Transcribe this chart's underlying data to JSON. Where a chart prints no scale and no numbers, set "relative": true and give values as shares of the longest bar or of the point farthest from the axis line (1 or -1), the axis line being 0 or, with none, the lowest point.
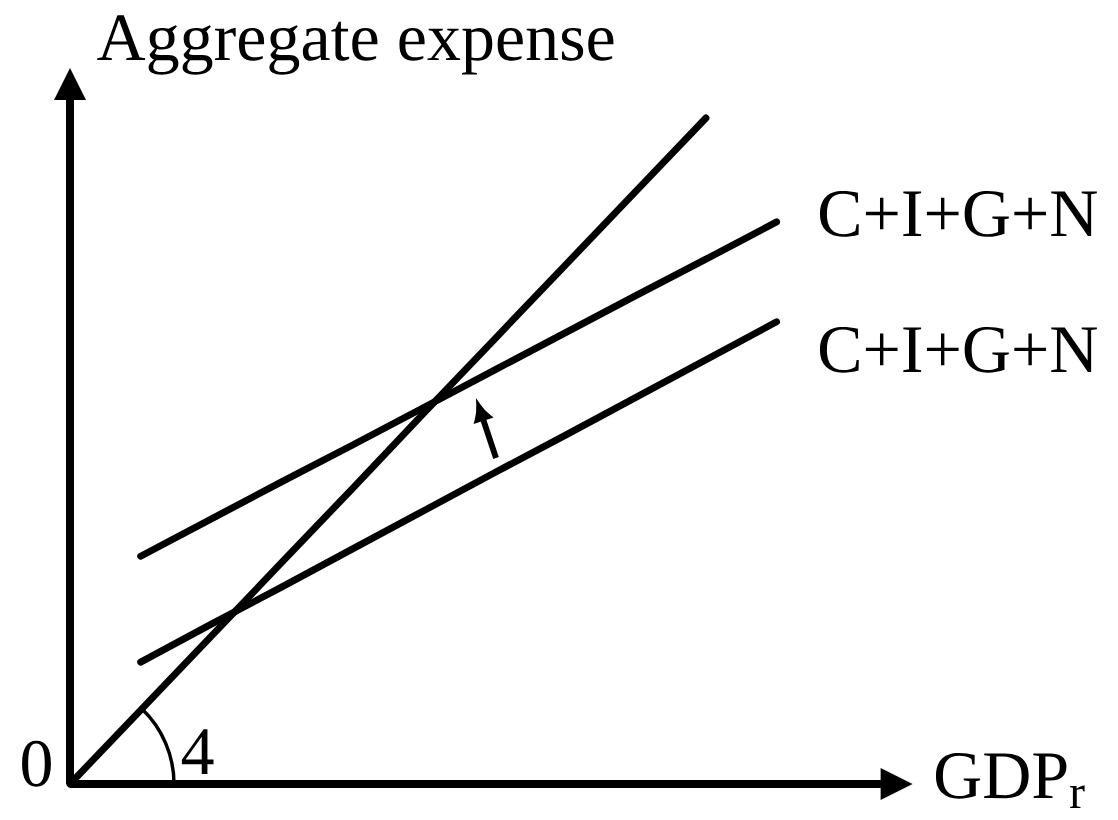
{
  "chart_data": {
    "type": "line",
    "ylabel": "Aggregate expense",
    "xlabel": "GDP$_{r}$",
    "relative": true,
    "categories": [
      null,
      null,
      null,
      null,
      null,
      null,
      null,
      null,
      null,
      null,
      null
    ],
    "series": [
      {
        "color": "#000000",
        "values": [
          0,
          0.111,
          0.222,
          0.333,
          0.444,
          0.556,
          0.667,
          0.778,
          0.889,
          1,
          null
        ]
      },
      {
        "name": "C+I+G+N",
        "color": "#000000",
        "values": [
          null,
          0.342,
          0.398,
          0.454,
          0.509,
          0.565,
          0.621,
          0.677,
          0.733,
          0.788,
          0.844
        ]
      },
      {
        "name": "C+I+G+N",
        "color": "#000000",
        "values": [
          null,
          0.183,
          0.24,
          0.296,
          0.353,
          0.41,
          0.467,
          0.523,
          0.58,
          0.637,
          0.694
        ]
      }
    ],
    "annotations": [
      "0",
      "4"
    ],
    "marker": "none",
    "line_style": "solid"
  }
}
